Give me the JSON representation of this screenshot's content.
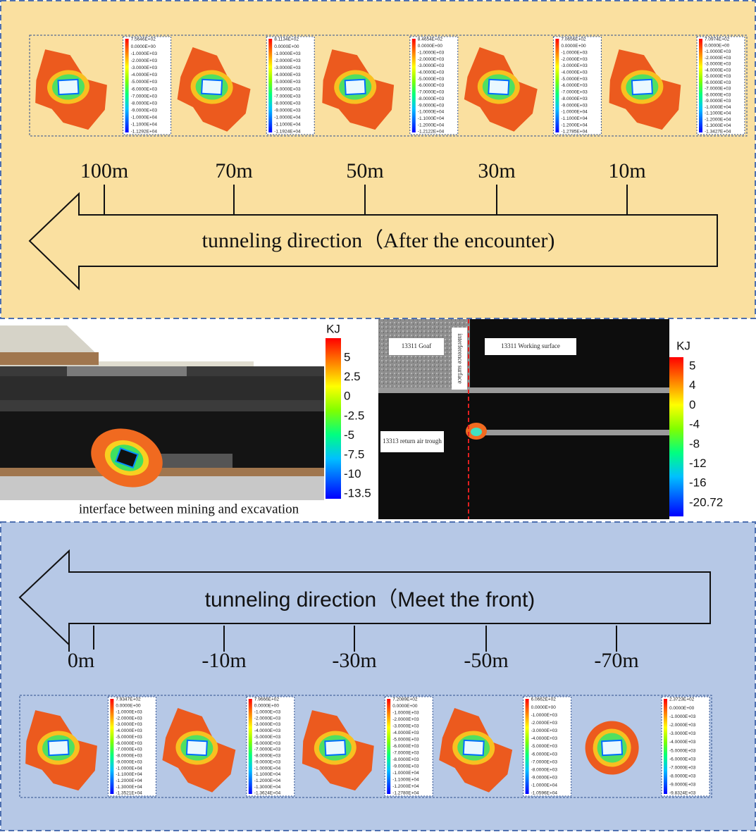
{
  "top_panel": {
    "legends": [
      [
        "7.5646E+02",
        "0.0000E+00",
        "-1.0000E+03",
        "-2.0000E+03",
        "-3.0000E+03",
        "-4.0000E+03",
        "-5.0000E+03",
        "-6.0000E+03",
        "-7.0000E+03",
        "-8.0000E+03",
        "-9.0000E+03",
        "-1.0000E+04",
        "-1.1000E+04",
        "-1.1292E+04"
      ],
      [
        "8.1134E+02",
        "0.0000E+00",
        "-1.0000E+03",
        "-2.0000E+03",
        "-3.0000E+03",
        "-4.0000E+03",
        "-5.0000E+03",
        "-6.0000E+03",
        "-7.0000E+03",
        "-8.0000E+03",
        "-9.0000E+03",
        "-1.0000E+04",
        "-1.1000E+04",
        "-1.1924E+04"
      ],
      [
        "8.4654E+02",
        "0.0000E+00",
        "-1.0000E+03",
        "-2.0000E+03",
        "-3.0000E+03",
        "-4.0000E+03",
        "-5.0000E+03",
        "-6.0000E+03",
        "-7.0000E+03",
        "-8.0000E+03",
        "-9.0000E+03",
        "-1.0000E+04",
        "-1.1000E+04",
        "-1.2000E+04",
        "-1.2122E+04"
      ],
      [
        "7.0656E+02",
        "0.0000E+00",
        "-1.0000E+03",
        "-2.0000E+03",
        "-3.0000E+03",
        "-4.0000E+03",
        "-5.0000E+03",
        "-6.0000E+03",
        "-7.0000E+03",
        "-8.0000E+03",
        "-9.0000E+03",
        "-1.0000E+04",
        "-1.1000E+04",
        "-1.2000E+04",
        "-1.2785E+04"
      ],
      [
        "7.0974E+02",
        "0.0000E+00",
        "-1.0000E+03",
        "-2.0000E+03",
        "-3.0000E+03",
        "-4.0000E+03",
        "-5.0000E+03",
        "-6.0000E+03",
        "-7.0000E+03",
        "-8.0000E+03",
        "-9.0000E+03",
        "-1.0000E+04",
        "-1.1000E+04",
        "-1.2000E+04",
        "-1.3000E+04",
        "-1.3427E+04"
      ]
    ],
    "distances": [
      "100m",
      "70m",
      "50m",
      "30m",
      "10m"
    ],
    "arrow_label": "tunneling direction（After the encounter)"
  },
  "middle": {
    "left": {
      "colorbar_title": "KJ",
      "colorbar_labels": [
        "5",
        "2.5",
        "0",
        "-2.5",
        "-5",
        "-7.5",
        "-10",
        "-13.5"
      ],
      "caption": "interface between mining and excavation"
    },
    "right": {
      "goaf": "13311 Goaf",
      "interference": "interference surface",
      "working_surface": "13311 Working surface",
      "return_air": "13313 return air trough",
      "colorbar_title": "KJ",
      "colorbar_labels": [
        "5",
        "4",
        "0",
        "-4",
        "-8",
        "-12",
        "-16",
        "-20.72"
      ]
    }
  },
  "bottom_panel": {
    "arrow_label": "tunneling direction（Meet the front)",
    "distances": [
      "0m",
      "-10m",
      "-30m",
      "-50m",
      "-70m"
    ],
    "legends": [
      [
        "7.9347E+02",
        "0.0000E+00",
        "-1.0000E+03",
        "-2.0000E+03",
        "-3.0000E+03",
        "-4.0000E+03",
        "-5.0000E+03",
        "-6.0000E+03",
        "-7.0000E+03",
        "-8.0000E+03",
        "-9.0000E+03",
        "-1.0000E+04",
        "-1.1000E+04",
        "-1.2000E+04",
        "-1.3000E+04",
        "-1.3521E+04"
      ],
      [
        "7.9666E+02",
        "0.0000E+00",
        "-1.0000E+03",
        "-2.0000E+03",
        "-3.0000E+03",
        "-4.0000E+03",
        "-5.0000E+03",
        "-6.0000E+03",
        "-7.0000E+03",
        "-8.0000E+03",
        "-9.0000E+03",
        "-1.0000E+04",
        "-1.1000E+04",
        "-1.2000E+04",
        "-1.3000E+04",
        "-1.3624E+04"
      ],
      [
        "7.2089E+02",
        "0.0000E+00",
        "-1.0000E+03",
        "-2.0000E+03",
        "-3.0000E+03",
        "-4.0000E+03",
        "-5.0000E+03",
        "-6.0000E+03",
        "-7.0000E+03",
        "-8.0000E+03",
        "-9.0000E+03",
        "-1.0000E+04",
        "-1.1000E+04",
        "-1.2000E+04",
        "-1.2780E+04"
      ],
      [
        "6.0662E+02",
        "0.0000E+00",
        "-1.0000E+03",
        "-2.0000E+03",
        "-3.0000E+03",
        "-4.0000E+03",
        "-5.0000E+03",
        "-6.0000E+03",
        "-7.0000E+03",
        "-8.0000E+03",
        "-9.0000E+03",
        "-1.0000E+04",
        "-1.0596E+04"
      ],
      [
        "2.3723E+02",
        "0.0000E+00",
        "-1.0000E+03",
        "-2.0000E+03",
        "-3.0000E+03",
        "-4.0000E+03",
        "-5.0000E+03",
        "-6.0000E+03",
        "-7.0000E+03",
        "-8.0000E+03",
        "-9.0000E+03",
        "-9.8324E+03"
      ]
    ]
  }
}
